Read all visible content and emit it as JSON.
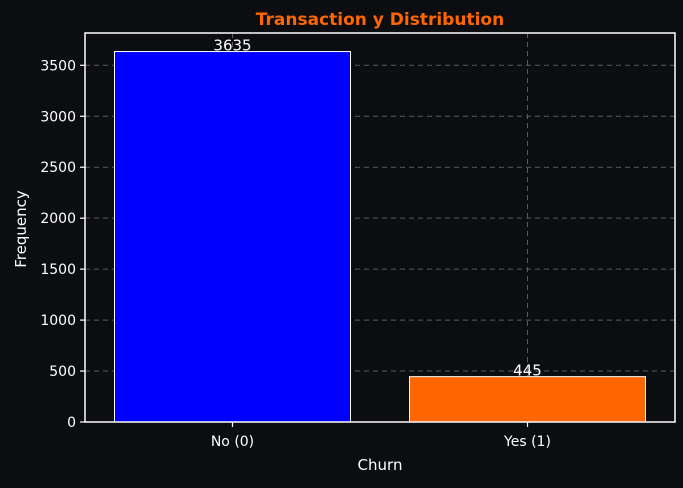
{
  "chart_data": {
    "type": "bar",
    "title": "Transaction y Distribution",
    "xlabel": "Churn",
    "ylabel": "Frequency",
    "categories": [
      "No (0)",
      "Yes (1)"
    ],
    "values": [
      3635,
      445
    ],
    "data_labels": [
      "3635",
      "445"
    ],
    "bar_colors": [
      "#0000ff",
      "#ff6600"
    ],
    "ylim": [
      0,
      3817
    ],
    "yticks": [
      0,
      500,
      1000,
      1500,
      2000,
      2500,
      3000,
      3500
    ],
    "ytick_labels": [
      "0",
      "500",
      "1000",
      "1500",
      "2000",
      "2500",
      "3000",
      "3500"
    ],
    "grid": true,
    "title_color": "#ff6600",
    "text_color": "#ffffff",
    "background_color": "#0b0d10"
  }
}
